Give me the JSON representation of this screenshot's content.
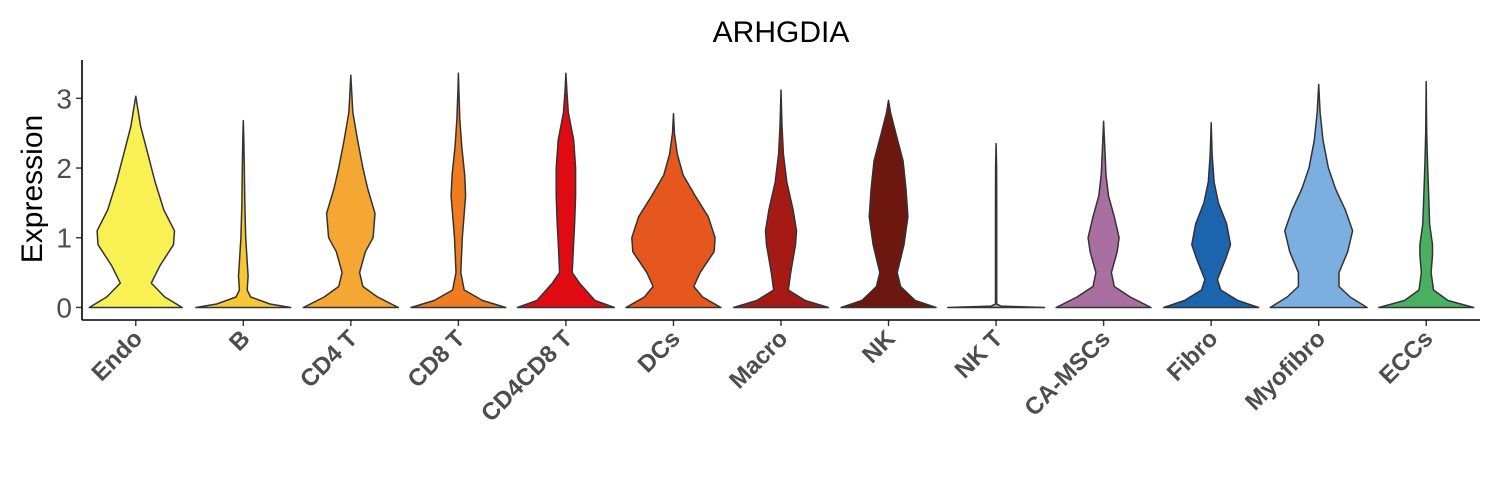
{
  "chart_data": {
    "type": "violin",
    "title": "ARHGDIA",
    "xlabel": "",
    "ylabel": "Expression",
    "ylim": [
      -0.18,
      3.55
    ],
    "yticks": [
      0,
      1,
      2,
      3
    ],
    "grid": false,
    "legend": "none",
    "categories": [
      "Endo",
      "B",
      "CD4 T",
      "CD8 T",
      "CD4CD8 T",
      "DCs",
      "Macro",
      "NK",
      "NK T",
      "CA-MSCs",
      "Fibro",
      "Myofibro",
      "ECCs"
    ],
    "colors": [
      "#F9F153",
      "#F7C736",
      "#F5A733",
      "#F07C22",
      "#E00A13",
      "#E5571C",
      "#A51A14",
      "#6E1610",
      "#A9A9A9",
      "#A96FA0",
      "#1B64AE",
      "#7AAFE0",
      "#4BAF62"
    ],
    "series": [
      {
        "max": 3.03,
        "profile": [
          [
            0,
            0.96
          ],
          [
            0.15,
            0.6
          ],
          [
            0.35,
            0.32
          ],
          [
            0.6,
            0.5
          ],
          [
            0.9,
            0.78
          ],
          [
            1.1,
            0.8
          ],
          [
            1.4,
            0.58
          ],
          [
            1.8,
            0.4
          ],
          [
            2.2,
            0.25
          ],
          [
            2.6,
            0.1
          ],
          [
            2.9,
            0.03
          ],
          [
            3.03,
            0.005
          ]
        ]
      },
      {
        "max": 2.68,
        "profile": [
          [
            0,
            0.98
          ],
          [
            0.05,
            0.55
          ],
          [
            0.15,
            0.15
          ],
          [
            0.25,
            0.08
          ],
          [
            0.45,
            0.1
          ],
          [
            0.65,
            0.08
          ],
          [
            1.0,
            0.05
          ],
          [
            1.5,
            0.03
          ],
          [
            2.0,
            0.02
          ],
          [
            2.4,
            0.01
          ],
          [
            2.68,
            0.003
          ]
        ]
      },
      {
        "max": 3.33,
        "profile": [
          [
            0,
            0.98
          ],
          [
            0.15,
            0.55
          ],
          [
            0.3,
            0.25
          ],
          [
            0.5,
            0.18
          ],
          [
            0.8,
            0.3
          ],
          [
            1.0,
            0.46
          ],
          [
            1.35,
            0.5
          ],
          [
            1.7,
            0.35
          ],
          [
            2.0,
            0.25
          ],
          [
            2.4,
            0.14
          ],
          [
            2.8,
            0.04
          ],
          [
            3.33,
            0.005
          ]
        ]
      },
      {
        "max": 3.36,
        "profile": [
          [
            0,
            0.98
          ],
          [
            0.1,
            0.5
          ],
          [
            0.25,
            0.12
          ],
          [
            0.5,
            0.05
          ],
          [
            1.0,
            0.08
          ],
          [
            1.6,
            0.15
          ],
          [
            1.9,
            0.13
          ],
          [
            2.3,
            0.07
          ],
          [
            2.7,
            0.03
          ],
          [
            3.1,
            0.01
          ],
          [
            3.36,
            0.002
          ]
        ]
      },
      {
        "max": 3.36,
        "profile": [
          [
            0,
            1.0
          ],
          [
            0.1,
            0.6
          ],
          [
            0.35,
            0.28
          ],
          [
            0.5,
            0.13
          ],
          [
            0.8,
            0.15
          ],
          [
            1.2,
            0.18
          ],
          [
            1.6,
            0.2
          ],
          [
            2.0,
            0.2
          ],
          [
            2.4,
            0.16
          ],
          [
            2.8,
            0.05
          ],
          [
            3.1,
            0.02
          ],
          [
            3.36,
            0.002
          ]
        ]
      },
      {
        "max": 2.78,
        "profile": [
          [
            0,
            0.98
          ],
          [
            0.15,
            0.6
          ],
          [
            0.3,
            0.42
          ],
          [
            0.5,
            0.55
          ],
          [
            0.8,
            0.84
          ],
          [
            1.0,
            0.86
          ],
          [
            1.3,
            0.72
          ],
          [
            1.6,
            0.45
          ],
          [
            1.9,
            0.2
          ],
          [
            2.2,
            0.08
          ],
          [
            2.5,
            0.02
          ],
          [
            2.78,
            0.003
          ]
        ]
      },
      {
        "max": 3.12,
        "profile": [
          [
            0,
            0.98
          ],
          [
            0.1,
            0.5
          ],
          [
            0.25,
            0.15
          ],
          [
            0.5,
            0.2
          ],
          [
            0.9,
            0.3
          ],
          [
            1.1,
            0.32
          ],
          [
            1.4,
            0.25
          ],
          [
            1.8,
            0.12
          ],
          [
            2.2,
            0.05
          ],
          [
            2.6,
            0.02
          ],
          [
            3.12,
            0.003
          ]
        ]
      },
      {
        "max": 2.97,
        "profile": [
          [
            0,
            0.98
          ],
          [
            0.1,
            0.55
          ],
          [
            0.3,
            0.25
          ],
          [
            0.5,
            0.18
          ],
          [
            0.9,
            0.32
          ],
          [
            1.3,
            0.4
          ],
          [
            1.7,
            0.36
          ],
          [
            2.1,
            0.3
          ],
          [
            2.5,
            0.15
          ],
          [
            2.8,
            0.04
          ],
          [
            2.97,
            0.003
          ]
        ]
      },
      {
        "max": 2.35,
        "profile": [
          [
            0,
            1.0
          ],
          [
            0.02,
            0.1
          ],
          [
            0.05,
            0.012
          ],
          [
            0.5,
            0.012
          ],
          [
            1.0,
            0.012
          ],
          [
            1.5,
            0.012
          ],
          [
            2.0,
            0.01
          ],
          [
            2.35,
            0.005
          ]
        ]
      },
      {
        "max": 2.67,
        "profile": [
          [
            0,
            0.98
          ],
          [
            0.15,
            0.55
          ],
          [
            0.3,
            0.22
          ],
          [
            0.5,
            0.16
          ],
          [
            0.8,
            0.28
          ],
          [
            1.0,
            0.32
          ],
          [
            1.3,
            0.22
          ],
          [
            1.6,
            0.1
          ],
          [
            1.9,
            0.05
          ],
          [
            2.2,
            0.03
          ],
          [
            2.5,
            0.01
          ],
          [
            2.67,
            0.003
          ]
        ]
      },
      {
        "max": 2.65,
        "profile": [
          [
            0,
            0.98
          ],
          [
            0.1,
            0.55
          ],
          [
            0.25,
            0.2
          ],
          [
            0.4,
            0.13
          ],
          [
            0.7,
            0.3
          ],
          [
            0.9,
            0.4
          ],
          [
            1.2,
            0.32
          ],
          [
            1.5,
            0.15
          ],
          [
            1.8,
            0.06
          ],
          [
            2.2,
            0.02
          ],
          [
            2.65,
            0.003
          ]
        ]
      },
      {
        "max": 3.2,
        "profile": [
          [
            0,
            1.0
          ],
          [
            0.15,
            0.65
          ],
          [
            0.3,
            0.42
          ],
          [
            0.5,
            0.42
          ],
          [
            0.8,
            0.6
          ],
          [
            1.1,
            0.7
          ],
          [
            1.4,
            0.55
          ],
          [
            1.7,
            0.35
          ],
          [
            2.0,
            0.2
          ],
          [
            2.4,
            0.09
          ],
          [
            2.8,
            0.03
          ],
          [
            3.2,
            0.003
          ]
        ]
      },
      {
        "max": 3.24,
        "profile": [
          [
            0,
            0.98
          ],
          [
            0.1,
            0.45
          ],
          [
            0.25,
            0.15
          ],
          [
            0.5,
            0.1
          ],
          [
            0.75,
            0.13
          ],
          [
            0.9,
            0.13
          ],
          [
            1.2,
            0.07
          ],
          [
            1.6,
            0.05
          ],
          [
            2.0,
            0.03
          ],
          [
            2.5,
            0.01
          ],
          [
            3.24,
            0.002
          ]
        ]
      }
    ]
  }
}
